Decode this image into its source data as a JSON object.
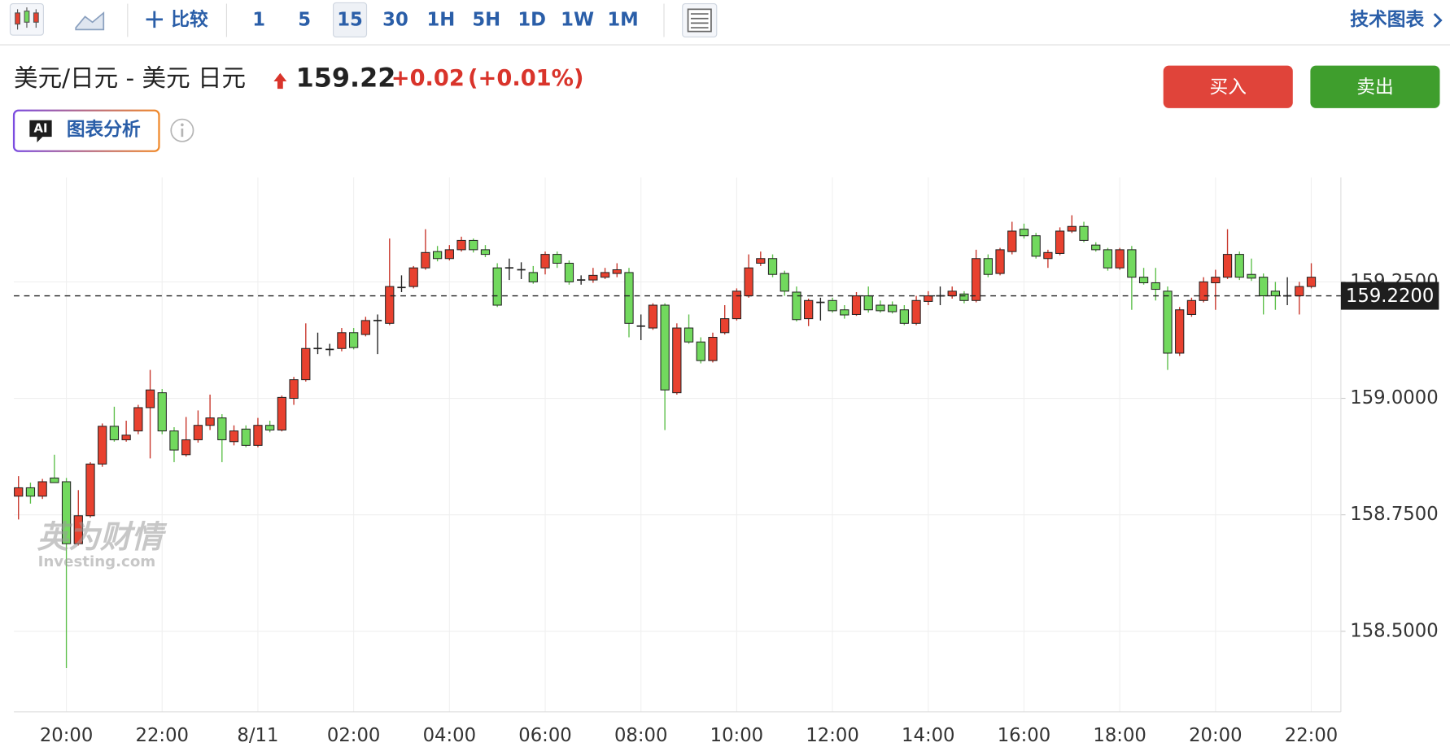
{
  "toolbar": {
    "compare": "比较",
    "intervals": [
      "1",
      "5",
      "15",
      "30",
      "1H",
      "5H",
      "1D",
      "1W",
      "1M"
    ],
    "selected_interval_index": 2,
    "tech_chart": "技术图表"
  },
  "header": {
    "title": "美元/日元 - 美元 日元",
    "price": "159.22",
    "change": "+0.02",
    "change_pct": "(+0.01%)"
  },
  "actions": {
    "buy": "买入",
    "sell": "卖出"
  },
  "ai": {
    "badge": "AI",
    "label": "图表分析"
  },
  "watermark": {
    "cn": "英为财情",
    "en": "Investing.com"
  },
  "chart_data": {
    "type": "candlestick",
    "categories": [
      null,
      null,
      null,
      null,
      "20:00",
      null,
      null,
      null,
      null,
      null,
      null,
      null,
      "22:00",
      null,
      null,
      null,
      null,
      null,
      null,
      null,
      "8/11",
      null,
      null,
      null,
      null,
      null,
      null,
      null,
      "02:00",
      null,
      null,
      null,
      null,
      null,
      null,
      null,
      "04:00",
      null,
      null,
      null,
      null,
      null,
      null,
      null,
      "06:00",
      null,
      null,
      null,
      null,
      null,
      null,
      null,
      "08:00",
      null,
      null,
      null,
      null,
      null,
      null,
      null,
      "10:00",
      null,
      null,
      null,
      null,
      null,
      null,
      null,
      "12:00",
      null,
      null,
      null,
      null,
      null,
      null,
      null,
      "14:00",
      null,
      null,
      null,
      null,
      null,
      null,
      null,
      "16:00",
      null,
      null,
      null,
      null,
      null,
      null,
      null,
      "18:00",
      null,
      null,
      null,
      null,
      null,
      null,
      null,
      "20:00",
      null,
      null,
      null,
      null,
      null,
      null,
      null,
      "22:00"
    ],
    "open": [
      158.79,
      158.808,
      158.79,
      158.829,
      158.821,
      158.688,
      158.748,
      158.859,
      158.94,
      158.911,
      158.93,
      158.98,
      159.012,
      158.93,
      158.879,
      158.911,
      158.942,
      158.958,
      158.907,
      158.934,
      158.899,
      158.942,
      158.932,
      159.0,
      159.04,
      159.107,
      159.105,
      159.107,
      159.141,
      159.137,
      159.167,
      159.161,
      159.238,
      159.24,
      159.28,
      159.315,
      159.3,
      159.319,
      159.339,
      159.319,
      159.28,
      159.28,
      159.276,
      159.27,
      159.28,
      159.309,
      159.29,
      159.254,
      159.254,
      159.26,
      159.268,
      159.27,
      159.155,
      159.151,
      159.2,
      159.012,
      159.151,
      159.121,
      159.081,
      159.141,
      159.171,
      159.22,
      159.29,
      159.3,
      159.268,
      159.228,
      159.171,
      159.206,
      159.21,
      159.19,
      159.18,
      159.22,
      159.2,
      159.2,
      159.19,
      159.161,
      159.208,
      159.22,
      159.22,
      159.224,
      159.21,
      159.3,
      159.268,
      159.315,
      159.363,
      159.349,
      159.3,
      159.311,
      159.359,
      159.369,
      159.329,
      159.319,
      159.28,
      159.319,
      159.26,
      159.248,
      159.23,
      159.097,
      159.18,
      159.21,
      159.248,
      159.26,
      159.309,
      159.266,
      159.26,
      159.23,
      159.22,
      159.22,
      159.24
    ],
    "high": [
      158.833,
      158.819,
      158.827,
      158.879,
      158.829,
      158.803,
      158.863,
      158.946,
      158.982,
      158.952,
      158.986,
      159.061,
      159.02,
      158.938,
      158.96,
      158.974,
      159.008,
      158.966,
      158.942,
      158.942,
      158.958,
      158.952,
      159.006,
      159.046,
      159.161,
      159.141,
      159.117,
      159.151,
      159.151,
      159.175,
      159.18,
      159.343,
      159.264,
      159.284,
      159.363,
      159.327,
      159.329,
      159.347,
      159.343,
      159.329,
      159.29,
      159.3,
      159.292,
      159.284,
      159.315,
      159.315,
      159.296,
      159.264,
      159.28,
      159.28,
      159.29,
      159.28,
      159.18,
      159.204,
      159.204,
      159.161,
      159.18,
      159.131,
      159.141,
      159.2,
      159.236,
      159.309,
      159.315,
      159.309,
      159.274,
      159.24,
      159.214,
      159.216,
      159.216,
      159.2,
      159.228,
      159.24,
      159.21,
      159.208,
      159.2,
      159.22,
      159.23,
      159.24,
      159.24,
      159.23,
      159.319,
      159.309,
      159.323,
      159.379,
      159.375,
      159.355,
      159.319,
      159.367,
      159.393,
      159.379,
      159.335,
      159.323,
      159.323,
      159.327,
      159.28,
      159.28,
      159.24,
      159.196,
      159.216,
      159.26,
      159.276,
      159.363,
      159.315,
      159.3,
      159.268,
      159.25,
      159.26,
      159.25,
      159.29
    ],
    "low": [
      158.74,
      158.774,
      158.784,
      158.819,
      158.421,
      158.684,
      158.744,
      158.853,
      158.907,
      158.907,
      158.923,
      158.871,
      158.923,
      158.863,
      158.875,
      158.905,
      158.932,
      158.863,
      158.899,
      158.895,
      158.895,
      158.927,
      158.929,
      158.986,
      159.036,
      159.095,
      159.091,
      159.101,
      159.105,
      159.133,
      159.095,
      159.157,
      159.228,
      159.236,
      159.276,
      159.294,
      159.296,
      159.315,
      159.313,
      159.303,
      159.196,
      159.254,
      159.256,
      159.246,
      159.266,
      159.28,
      159.244,
      159.244,
      159.248,
      159.256,
      159.26,
      159.131,
      159.125,
      159.147,
      158.932,
      159.008,
      159.117,
      159.075,
      159.077,
      159.137,
      159.167,
      159.216,
      159.284,
      159.26,
      159.22,
      159.165,
      159.155,
      159.167,
      159.184,
      159.171,
      159.177,
      159.184,
      159.184,
      159.182,
      159.157,
      159.157,
      159.2,
      159.2,
      159.214,
      159.204,
      159.206,
      159.26,
      159.264,
      159.309,
      159.343,
      159.3,
      159.28,
      159.307,
      159.355,
      159.335,
      159.315,
      159.274,
      159.276,
      159.19,
      159.244,
      159.21,
      159.061,
      159.091,
      159.175,
      159.206,
      159.19,
      159.256,
      159.254,
      159.252,
      159.18,
      159.19,
      159.2,
      159.18,
      159.236
    ],
    "close": [
      158.808,
      158.79,
      158.821,
      158.819,
      158.688,
      158.748,
      158.859,
      158.94,
      158.911,
      158.921,
      158.98,
      159.018,
      158.93,
      158.889,
      158.911,
      158.942,
      158.958,
      158.911,
      158.93,
      158.899,
      158.942,
      158.932,
      159.002,
      159.04,
      159.107,
      159.107,
      159.105,
      159.141,
      159.109,
      159.167,
      159.167,
      159.24,
      159.238,
      159.28,
      159.313,
      159.3,
      159.319,
      159.339,
      159.319,
      159.309,
      159.2,
      159.28,
      159.276,
      159.25,
      159.309,
      159.29,
      159.25,
      159.254,
      159.264,
      159.27,
      159.276,
      159.161,
      159.155,
      159.2,
      159.018,
      159.151,
      159.121,
      159.081,
      159.131,
      159.171,
      159.23,
      159.28,
      159.3,
      159.266,
      159.23,
      159.169,
      159.21,
      159.206,
      159.188,
      159.179,
      159.22,
      159.19,
      159.188,
      159.186,
      159.161,
      159.21,
      159.22,
      159.22,
      159.23,
      159.21,
      159.3,
      159.266,
      159.319,
      159.359,
      159.349,
      159.305,
      159.313,
      159.359,
      159.369,
      159.339,
      159.319,
      159.28,
      159.319,
      159.26,
      159.248,
      159.234,
      159.097,
      159.19,
      159.21,
      159.25,
      159.26,
      159.309,
      159.26,
      159.258,
      159.22,
      159.22,
      159.22,
      159.24,
      159.26
    ],
    "up_color": "#e8412f",
    "down_color": "#72d95e",
    "ylim": [
      158.327,
      159.474
    ],
    "yticks": [
      {
        "value": 158.5,
        "label": "158.5000"
      },
      {
        "value": 158.75,
        "label": "158.7500"
      },
      {
        "value": 159,
        "label": "159.0000"
      },
      {
        "value": 159.25,
        "label": "159.2500"
      }
    ],
    "grid": true,
    "current_price": {
      "value": 159.22,
      "label": "159.2200"
    }
  }
}
